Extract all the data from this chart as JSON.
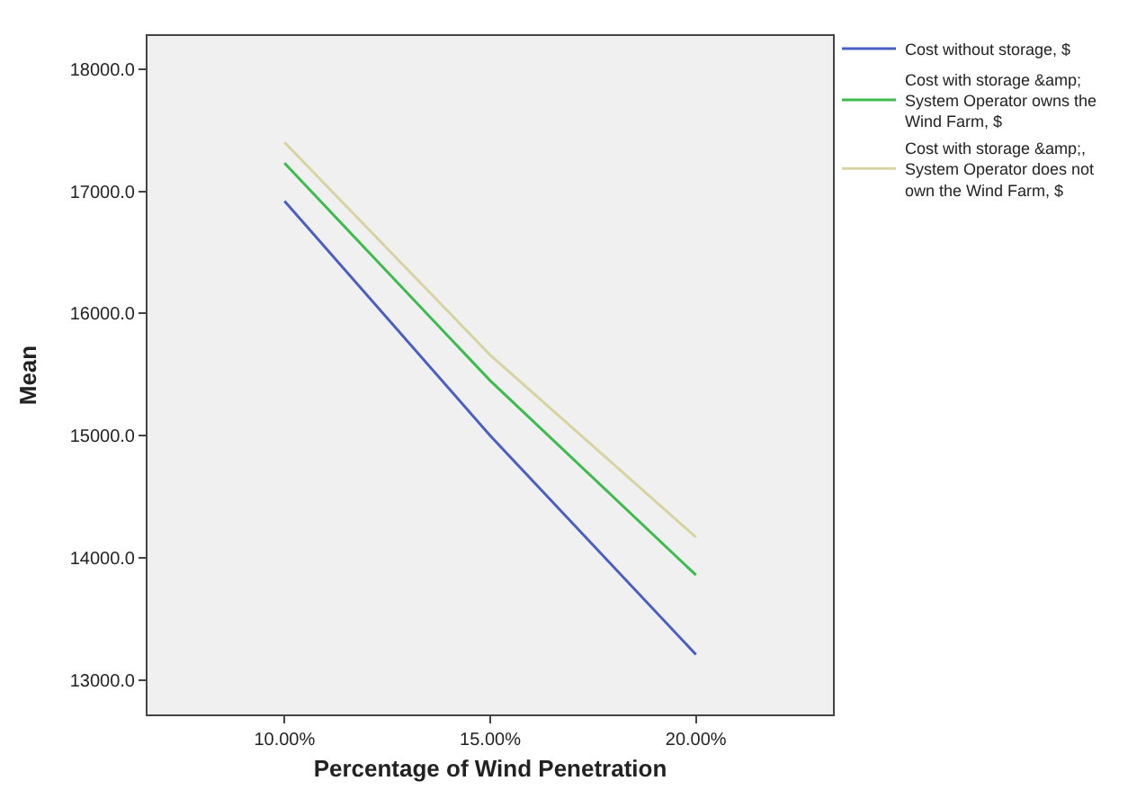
{
  "chart_data": {
    "type": "line",
    "xlabel": "Percentage of Wind Penetration",
    "ylabel": "Mean",
    "x": [
      10,
      15,
      20
    ],
    "series": [
      {
        "name": "Cost without storage, $",
        "color": "#4a5fc1",
        "values": [
          16920,
          15000,
          13210
        ]
      },
      {
        "name": "Cost with storage &amp; System Operator owns the Wind Farm, $",
        "color": "#3dbb4e",
        "values": [
          17230,
          15450,
          13860
        ]
      },
      {
        "name": "Cost with storage &amp;, System Operator does not own the Wind Farm, $",
        "color": "#d8d3a3",
        "values": [
          17400,
          15660,
          14170
        ]
      }
    ],
    "xlim": [
      6.67,
      23.33
    ],
    "ylim": [
      12720,
      18270
    ],
    "xticks": [
      {
        "value": 10,
        "label": "10.00%"
      },
      {
        "value": 15,
        "label": "15.00%"
      },
      {
        "value": 20,
        "label": "20.00%"
      }
    ],
    "yticks": [
      {
        "value": 13000,
        "label": "13000.0"
      },
      {
        "value": 14000,
        "label": "14000.0"
      },
      {
        "value": 15000,
        "label": "15000.0"
      },
      {
        "value": 16000,
        "label": "16000.0"
      },
      {
        "value": 17000,
        "label": "17000.0"
      },
      {
        "value": 18000,
        "label": "18000.0"
      }
    ],
    "grid": false,
    "legend": "top right",
    "marker": "none",
    "line_style": "solid"
  }
}
